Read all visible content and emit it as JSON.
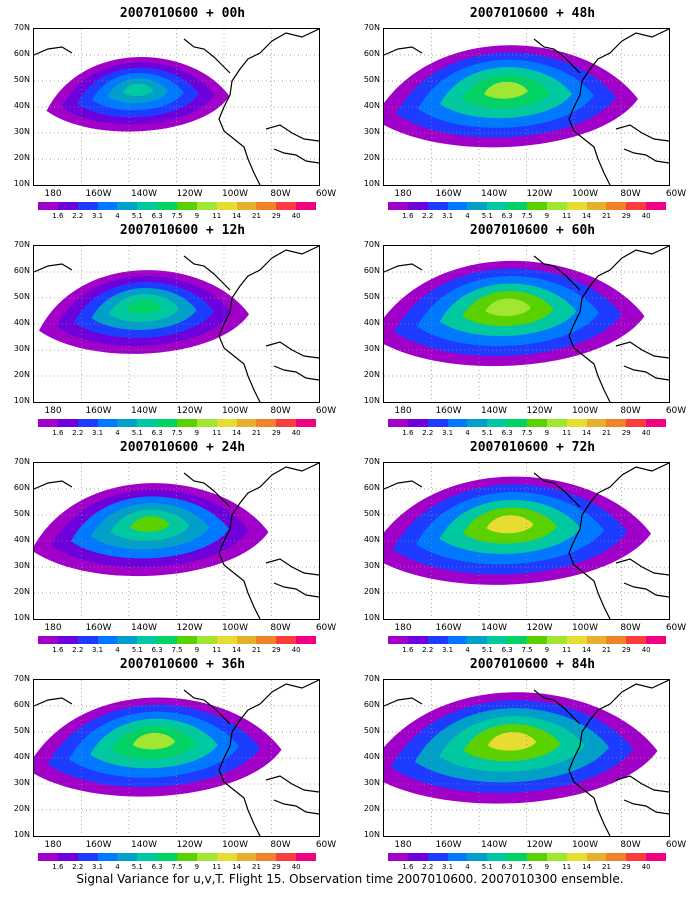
{
  "figure": {
    "caption": "Signal Variance for u,v,T. Flight 15. Observation time 2007010600. 2007010300 ensemble."
  },
  "panels": [
    {
      "title": "2007010600 + 00h",
      "intensity": 0.35
    },
    {
      "title": "2007010600 + 48h",
      "intensity": 0.8
    },
    {
      "title": "2007010600 + 12h",
      "intensity": 0.5
    },
    {
      "title": "2007010600 + 60h",
      "intensity": 0.85
    },
    {
      "title": "2007010600 + 24h",
      "intensity": 0.65
    },
    {
      "title": "2007010600 + 72h",
      "intensity": 0.9
    },
    {
      "title": "2007010600 + 36h",
      "intensity": 0.75
    },
    {
      "title": "2007010600 + 84h",
      "intensity": 0.95
    }
  ],
  "axes": {
    "lat_labels": [
      "70N",
      "60N",
      "50N",
      "40N",
      "30N",
      "20N",
      "10N"
    ],
    "lon_labels": [
      "180",
      "160W",
      "140W",
      "120W",
      "100W",
      "80W",
      "60W"
    ]
  },
  "colorbar": {
    "labels": [
      "1.6",
      "2.2",
      "3.1",
      "4",
      "5.1",
      "6.3",
      "7.5",
      "9",
      "11",
      "14",
      "21",
      "29",
      "40"
    ],
    "colors": [
      "#a000c8",
      "#6e00dc",
      "#1e3cff",
      "#0078ff",
      "#00a0c8",
      "#00c8a0",
      "#00d264",
      "#5ad200",
      "#a0e632",
      "#e6dc32",
      "#e6af2d",
      "#f08228",
      "#fa3c3c",
      "#f00082"
    ]
  }
}
